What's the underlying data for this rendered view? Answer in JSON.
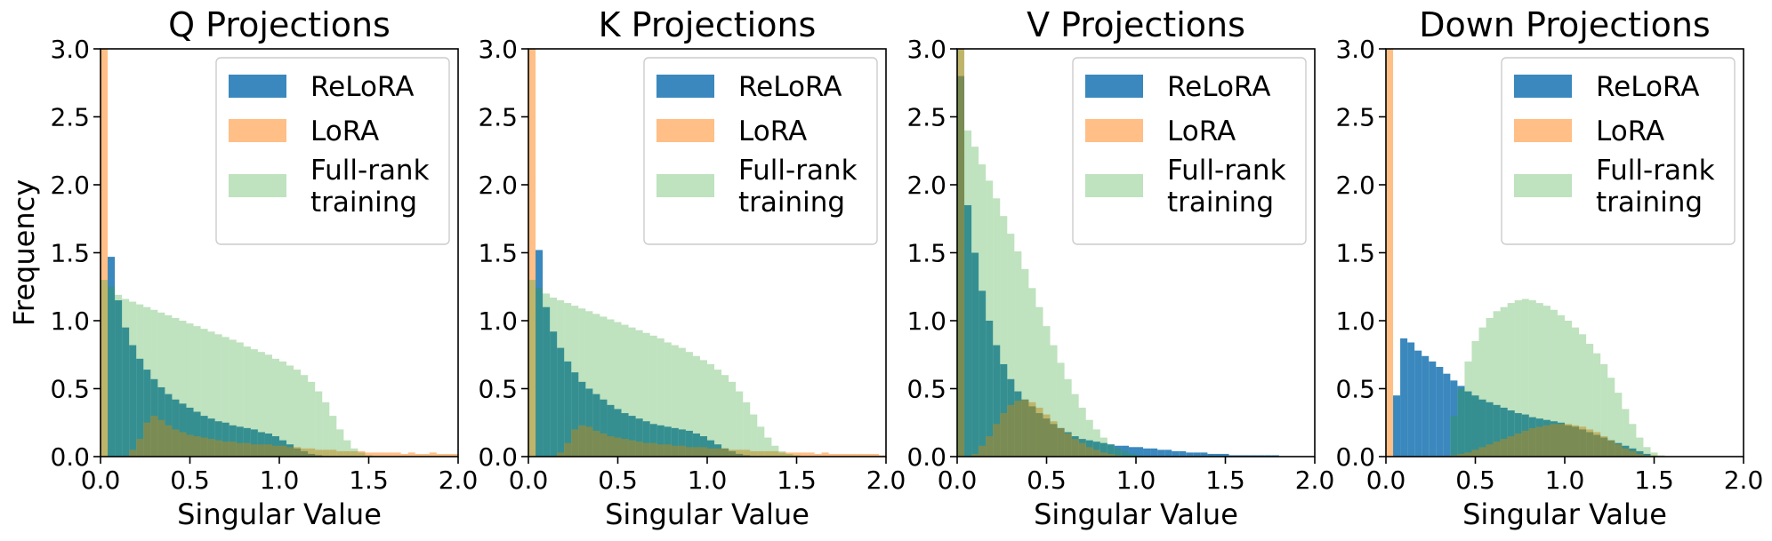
{
  "chart_data": [
    {
      "type": "bar",
      "title": "Q Projections",
      "xlabel": "Singular Value",
      "ylabel": "Frequency",
      "xlim": [
        0,
        2.0
      ],
      "ylim": [
        0,
        3.0
      ],
      "bin_width": 0.04,
      "xticks": [
        "0.0",
        "0.5",
        "1.0",
        "1.5",
        "2.0"
      ],
      "yticks": [
        "0.0",
        "0.5",
        "1.0",
        "1.5",
        "2.0",
        "2.5",
        "3.0"
      ],
      "legend": {
        "position": "top-right",
        "entries": [
          "ReLoRA",
          "LoRA",
          "Full-rank",
          "training"
        ]
      },
      "series": [
        {
          "name": "ReLoRA",
          "color": "#1f77b4",
          "alpha": 0.88,
          "x0": 0.04,
          "values": [
            1.47,
            1.15,
            0.95,
            0.82,
            0.72,
            0.64,
            0.57,
            0.51,
            0.46,
            0.42,
            0.39,
            0.36,
            0.33,
            0.3,
            0.28,
            0.26,
            0.25,
            0.23,
            0.22,
            0.21,
            0.2,
            0.18,
            0.17,
            0.15,
            0.12,
            0.09,
            0.06,
            0.04,
            0.02,
            0.01
          ]
        },
        {
          "name": "LoRA",
          "color": "#ff7f0e",
          "alpha": 0.5,
          "x0": 0.0,
          "spike": {
            "x": 0.0,
            "width": 0.04,
            "value": 3.0
          },
          "values": [
            0,
            0,
            0,
            0,
            0.05,
            0.13,
            0.25,
            0.3,
            0.27,
            0.23,
            0.2,
            0.18,
            0.16,
            0.15,
            0.14,
            0.13,
            0.12,
            0.11,
            0.11,
            0.1,
            0.1,
            0.09,
            0.09,
            0.09,
            0.08,
            0.08,
            0.07,
            0.07,
            0.06,
            0.06,
            0.05,
            0.05,
            0.05,
            0.04,
            0.04,
            0.04,
            0.04,
            0.03,
            0.03,
            0.03,
            0.03,
            0.03,
            0.02,
            0.03,
            0.02,
            0.02,
            0.03,
            0.02,
            0.02,
            0.02
          ]
        },
        {
          "name": "Full-rank training",
          "color": "#2ca02c",
          "alpha": 0.3,
          "x0": 0.0,
          "values": [
            1.3,
            1.25,
            1.19,
            1.16,
            1.14,
            1.12,
            1.1,
            1.08,
            1.06,
            1.04,
            1.02,
            1.0,
            0.98,
            0.96,
            0.94,
            0.92,
            0.9,
            0.88,
            0.86,
            0.84,
            0.81,
            0.79,
            0.77,
            0.75,
            0.72,
            0.7,
            0.67,
            0.64,
            0.6,
            0.55,
            0.48,
            0.4,
            0.3,
            0.2,
            0.12,
            0.06,
            0.03,
            0.01
          ]
        }
      ]
    },
    {
      "type": "bar",
      "title": "K Projections",
      "xlabel": "Singular Value",
      "ylabel": "",
      "xlim": [
        0,
        2.0
      ],
      "ylim": [
        0,
        3.0
      ],
      "bin_width": 0.04,
      "xticks": [
        "0.0",
        "0.5",
        "1.0",
        "1.5",
        "2.0"
      ],
      "yticks": [
        "0.0",
        "0.5",
        "1.0",
        "1.5",
        "2.0",
        "2.5",
        "3.0"
      ],
      "legend": {
        "position": "top-right",
        "entries": [
          "ReLoRA",
          "LoRA",
          "Full-rank",
          "training"
        ]
      },
      "series": [
        {
          "name": "ReLoRA",
          "color": "#1f77b4",
          "alpha": 0.88,
          "x0": 0.04,
          "values": [
            1.52,
            1.1,
            0.92,
            0.8,
            0.7,
            0.62,
            0.55,
            0.5,
            0.46,
            0.42,
            0.38,
            0.35,
            0.32,
            0.3,
            0.28,
            0.26,
            0.24,
            0.23,
            0.22,
            0.21,
            0.2,
            0.19,
            0.17,
            0.15,
            0.12,
            0.09,
            0.06,
            0.04,
            0.02,
            0.01
          ]
        },
        {
          "name": "LoRA",
          "color": "#ff7f0e",
          "alpha": 0.5,
          "x0": 0.0,
          "spike": {
            "x": 0.0,
            "width": 0.04,
            "value": 3.0
          },
          "values": [
            0,
            0,
            0,
            0,
            0.03,
            0.1,
            0.2,
            0.23,
            0.22,
            0.19,
            0.17,
            0.15,
            0.14,
            0.13,
            0.12,
            0.11,
            0.1,
            0.1,
            0.09,
            0.09,
            0.08,
            0.08,
            0.07,
            0.07,
            0.07,
            0.06,
            0.06,
            0.06,
            0.05,
            0.05,
            0.05,
            0.04,
            0.04,
            0.04,
            0.04,
            0.03,
            0.03,
            0.03,
            0.03,
            0.03,
            0.02,
            0.03,
            0.02,
            0.02,
            0.02,
            0.02,
            0.02,
            0.02,
            0.02,
            0.01
          ]
        },
        {
          "name": "Full-rank training",
          "color": "#2ca02c",
          "alpha": 0.3,
          "x0": 0.0,
          "values": [
            1.3,
            1.24,
            1.2,
            1.17,
            1.15,
            1.13,
            1.11,
            1.09,
            1.07,
            1.05,
            1.03,
            1.01,
            0.99,
            0.97,
            0.95,
            0.93,
            0.91,
            0.89,
            0.87,
            0.84,
            0.82,
            0.8,
            0.77,
            0.74,
            0.71,
            0.68,
            0.64,
            0.6,
            0.55,
            0.48,
            0.4,
            0.31,
            0.22,
            0.14,
            0.08,
            0.04,
            0.02,
            0.01
          ]
        }
      ]
    },
    {
      "type": "bar",
      "title": "V Projections",
      "xlabel": "Singular Value",
      "ylabel": "",
      "xlim": [
        0,
        2.0
      ],
      "ylim": [
        0,
        3.0
      ],
      "bin_width": 0.04,
      "xticks": [
        "0.0",
        "0.5",
        "1.0",
        "1.5",
        "2.0"
      ],
      "yticks": [
        "0.0",
        "0.5",
        "1.0",
        "1.5",
        "2.0",
        "2.5",
        "3.0"
      ],
      "legend": {
        "position": "top-right",
        "entries": [
          "ReLoRA",
          "LoRA",
          "Full-rank",
          "training"
        ]
      },
      "series": [
        {
          "name": "ReLoRA",
          "color": "#1f77b4",
          "alpha": 0.88,
          "x0": 0.0,
          "values": [
            2.8,
            1.85,
            1.5,
            1.22,
            1.0,
            0.82,
            0.68,
            0.57,
            0.48,
            0.42,
            0.37,
            0.32,
            0.28,
            0.24,
            0.21,
            0.18,
            0.15,
            0.13,
            0.12,
            0.11,
            0.1,
            0.09,
            0.08,
            0.08,
            0.07,
            0.07,
            0.06,
            0.06,
            0.05,
            0.05,
            0.04,
            0.04,
            0.03,
            0.03,
            0.03,
            0.02,
            0.02,
            0.02,
            0.01,
            0.01,
            0.01,
            0.01,
            0.01,
            0.01,
            0.01
          ]
        },
        {
          "name": "LoRA",
          "color": "#ff7f0e",
          "alpha": 0.5,
          "x0": 0.0,
          "spike": {
            "x": 0.0,
            "width": 0.04,
            "value": 3.0
          },
          "values": [
            0,
            0,
            0.02,
            0.08,
            0.15,
            0.24,
            0.32,
            0.38,
            0.41,
            0.42,
            0.4,
            0.36,
            0.31,
            0.26,
            0.21,
            0.17,
            0.13,
            0.1,
            0.07,
            0.05,
            0.03,
            0.02,
            0.01
          ]
        },
        {
          "name": "Full-rank training",
          "color": "#2ca02c",
          "alpha": 0.3,
          "x0": 0.0,
          "values": [
            3.0,
            2.4,
            2.28,
            2.15,
            2.03,
            1.9,
            1.77,
            1.64,
            1.51,
            1.38,
            1.24,
            1.1,
            0.96,
            0.82,
            0.69,
            0.57,
            0.46,
            0.36,
            0.27,
            0.2,
            0.14,
            0.09,
            0.06,
            0.04,
            0.02,
            0.01
          ]
        }
      ]
    },
    {
      "type": "bar",
      "title": "Down Projections",
      "xlabel": "Singular Value",
      "ylabel": "",
      "xlim": [
        0,
        2.0
      ],
      "ylim": [
        0,
        3.0
      ],
      "bin_width": 0.04,
      "xticks": [
        "0.0",
        "0.5",
        "1.0",
        "1.5",
        "2.0"
      ],
      "yticks": [
        "0.0",
        "0.5",
        "1.0",
        "1.5",
        "2.0",
        "2.5",
        "3.0"
      ],
      "legend": {
        "position": "top-right",
        "entries": [
          "ReLoRA",
          "LoRA",
          "Full-rank",
          "training"
        ]
      },
      "series": [
        {
          "name": "ReLoRA",
          "color": "#1f77b4",
          "alpha": 0.88,
          "x0": 0.04,
          "values": [
            0.45,
            0.87,
            0.84,
            0.78,
            0.74,
            0.7,
            0.66,
            0.61,
            0.56,
            0.52,
            0.48,
            0.45,
            0.42,
            0.4,
            0.38,
            0.36,
            0.34,
            0.32,
            0.31,
            0.29,
            0.28,
            0.27,
            0.26,
            0.25,
            0.23,
            0.22,
            0.2,
            0.18,
            0.16,
            0.14,
            0.12,
            0.1,
            0.08,
            0.06,
            0.04,
            0.02
          ]
        },
        {
          "name": "LoRA",
          "color": "#ff7f0e",
          "alpha": 0.5,
          "x0": 0.0,
          "spike": {
            "x": 0.0,
            "width": 0.04,
            "value": 3.0
          },
          "values": [
            0,
            0,
            0,
            0,
            0,
            0,
            0,
            0,
            0,
            0.01,
            0.02,
            0.03,
            0.05,
            0.07,
            0.09,
            0.11,
            0.13,
            0.15,
            0.17,
            0.19,
            0.21,
            0.22,
            0.23,
            0.24,
            0.24,
            0.24,
            0.23,
            0.22,
            0.2,
            0.18,
            0.15,
            0.12,
            0.09,
            0.06,
            0.04,
            0.02,
            0.01,
            0.01
          ]
        },
        {
          "name": "Full-rank training",
          "color": "#2ca02c",
          "alpha": 0.3,
          "x0": 0.0,
          "values": [
            0,
            0,
            0,
            0,
            0,
            0,
            0,
            0,
            0,
            0.3,
            0.5,
            0.7,
            0.85,
            0.95,
            1.02,
            1.07,
            1.1,
            1.13,
            1.15,
            1.16,
            1.15,
            1.13,
            1.11,
            1.08,
            1.04,
            1.0,
            0.95,
            0.9,
            0.83,
            0.76,
            0.68,
            0.58,
            0.47,
            0.35,
            0.24,
            0.14,
            0.07,
            0.03,
            0.01
          ]
        }
      ]
    }
  ]
}
